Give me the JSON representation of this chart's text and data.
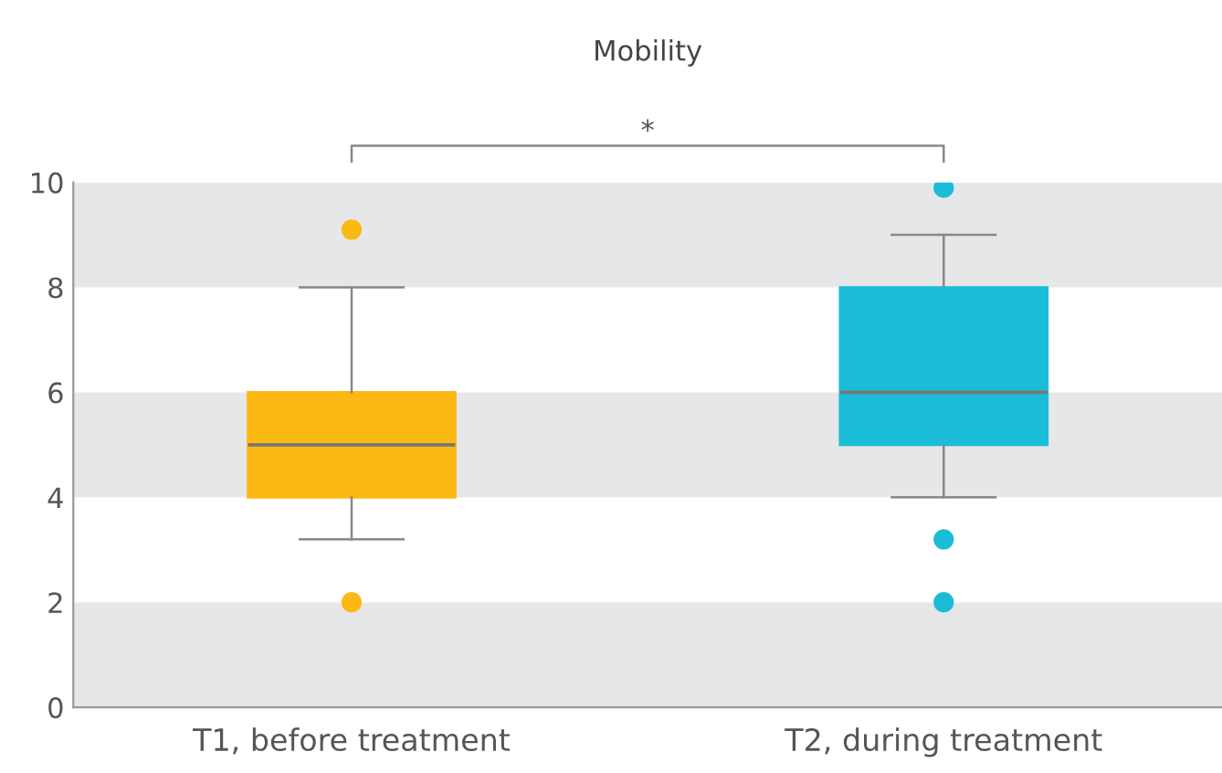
{
  "chart_data": {
    "type": "box",
    "title": "Mobility",
    "categories": [
      "T1, before treatment",
      "T2, during treatment"
    ],
    "series": [
      {
        "colors": [
          "#fdb913",
          "#1bbcd8"
        ],
        "boxes": [
          {
            "low": 3.2,
            "q1": 4,
            "median": 5,
            "q3": 6,
            "high": 8,
            "outliers": [
              9.1,
              2
            ]
          },
          {
            "low": 4,
            "q1": 5,
            "median": 6,
            "q3": 8,
            "high": 9,
            "outliers": [
              9.9,
              3.2,
              2
            ]
          }
        ]
      }
    ],
    "ylim": [
      0,
      10
    ],
    "yticks": [
      0,
      2,
      4,
      6,
      8,
      10
    ],
    "grid": false,
    "bands": [
      {
        "axis": "y",
        "from": 0,
        "to": 2,
        "color": "#e6e7e8"
      },
      {
        "axis": "y",
        "from": 4,
        "to": 6,
        "color": "#e6e7e8"
      },
      {
        "axis": "y",
        "from": 8,
        "to": 10,
        "color": "#e6e7e8"
      }
    ],
    "annotations": [
      "*"
    ]
  }
}
